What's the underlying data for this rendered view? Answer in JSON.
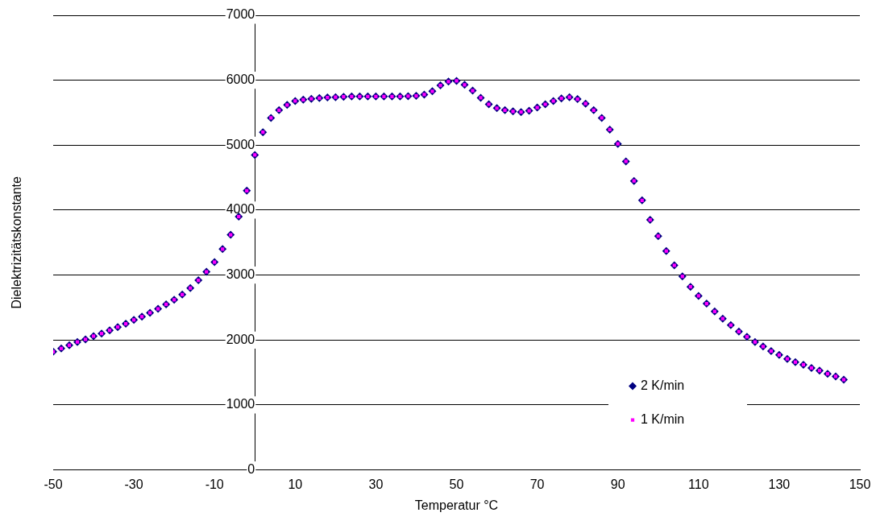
{
  "chart_data": {
    "type": "scatter",
    "xlabel": "Temperatur °C",
    "ylabel": "Dielektrizitätskonstante",
    "xlim": [
      -50,
      150
    ],
    "xticks": [
      -50,
      -30,
      -10,
      10,
      30,
      50,
      70,
      90,
      110,
      130,
      150
    ],
    "ylim": [
      0,
      7000
    ],
    "yticks": [
      0,
      1000,
      2000,
      3000,
      4000,
      5000,
      6000,
      7000
    ],
    "grid": "y",
    "legend": "bottom right",
    "x": [
      -50,
      -48,
      -46,
      -44,
      -42,
      -40,
      -38,
      -36,
      -34,
      -32,
      -30,
      -28,
      -26,
      -24,
      -22,
      -20,
      -18,
      -16,
      -14,
      -12,
      -10,
      -8,
      -6,
      -4,
      -2,
      0,
      2,
      4,
      6,
      8,
      10,
      12,
      14,
      16,
      18,
      20,
      22,
      24,
      26,
      28,
      30,
      32,
      34,
      36,
      38,
      40,
      42,
      44,
      46,
      48,
      50,
      52,
      54,
      56,
      58,
      60,
      62,
      64,
      66,
      68,
      70,
      72,
      74,
      76,
      78,
      80,
      82,
      84,
      86,
      88,
      90,
      92,
      94,
      96,
      98,
      100,
      102,
      104,
      106,
      108,
      110,
      112,
      114,
      116,
      118,
      120,
      122,
      124,
      126,
      128,
      130,
      132,
      134,
      136,
      138,
      140,
      142,
      144,
      146
    ],
    "series": [
      {
        "name": "2 K/min",
        "color": "#000080",
        "marker": "diamond",
        "values": [
          1820,
          1870,
          1920,
          1970,
          2010,
          2060,
          2100,
          2150,
          2200,
          2250,
          2310,
          2360,
          2420,
          2480,
          2550,
          2620,
          2700,
          2800,
          2920,
          3050,
          3200,
          3400,
          3620,
          3900,
          4300,
          4850,
          5200,
          5420,
          5540,
          5620,
          5680,
          5700,
          5715,
          5725,
          5735,
          5740,
          5745,
          5750,
          5750,
          5750,
          5750,
          5750,
          5750,
          5750,
          5755,
          5760,
          5780,
          5830,
          5920,
          5980,
          5990,
          5930,
          5840,
          5730,
          5630,
          5570,
          5540,
          5520,
          5510,
          5530,
          5580,
          5630,
          5680,
          5720,
          5740,
          5710,
          5640,
          5540,
          5420,
          5240,
          5020,
          4750,
          4450,
          4150,
          3850,
          3600,
          3370,
          3150,
          2980,
          2820,
          2680,
          2560,
          2440,
          2330,
          2230,
          2130,
          2050,
          1970,
          1900,
          1830,
          1770,
          1710,
          1660,
          1620,
          1570,
          1530,
          1480,
          1440,
          1390
        ]
      },
      {
        "name": "1 K/min",
        "color": "#ff00ff",
        "marker": "square",
        "values": [
          1820,
          1870,
          1920,
          1970,
          2010,
          2060,
          2100,
          2150,
          2200,
          2250,
          2310,
          2360,
          2420,
          2480,
          2550,
          2620,
          2700,
          2800,
          2920,
          3050,
          3200,
          3400,
          3620,
          3900,
          4300,
          4850,
          5200,
          5420,
          5540,
          5620,
          5680,
          5700,
          5715,
          5725,
          5735,
          5740,
          5745,
          5750,
          5750,
          5750,
          5750,
          5750,
          5750,
          5750,
          5755,
          5760,
          5780,
          5830,
          5920,
          5980,
          5990,
          5930,
          5840,
          5730,
          5630,
          5570,
          5540,
          5520,
          5510,
          5530,
          5580,
          5630,
          5680,
          5720,
          5740,
          5710,
          5640,
          5540,
          5420,
          5240,
          5020,
          4750,
          4450,
          4150,
          3850,
          3600,
          3370,
          3150,
          2980,
          2820,
          2680,
          2560,
          2440,
          2330,
          2230,
          2130,
          2050,
          1970,
          1900,
          1830,
          1770,
          1710,
          1660,
          1620,
          1570,
          1530,
          1480,
          1440,
          1390
        ]
      }
    ]
  }
}
